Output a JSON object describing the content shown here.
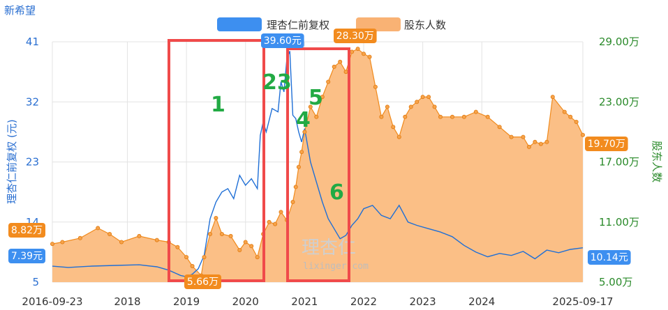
{
  "title": "新希望",
  "legend": [
    {
      "label": "理杏仁前复权",
      "color": "#3d8ff0"
    },
    {
      "label": "股东人数",
      "color": "#f9b274"
    }
  ],
  "axis": {
    "left_label": "理杏仁前复权 (元)",
    "right_label": "股东人数",
    "left_ticks": [
      "41",
      "32",
      "23",
      "14",
      "5"
    ],
    "right_ticks": [
      "29.00万",
      "23.00万",
      "17.00万",
      "11.00万",
      "5.00万"
    ],
    "x_ticks": [
      "2016-09-23",
      "2018",
      "2019",
      "2020",
      "2021",
      "2022",
      "2023",
      "2024",
      "2025-09-17"
    ]
  },
  "tags": {
    "price_start": "7.39元",
    "price_end": "10.14元",
    "price_max": "39.60元",
    "holders_start": "8.82万",
    "holders_end": "19.70万",
    "holders_max": "28.30万",
    "holders_min": "5.66万"
  },
  "annotations": [
    "1",
    "23",
    "4",
    "5",
    "6"
  ],
  "watermark": {
    "cn": "理杏仁",
    "url": "lixinger.com"
  },
  "colors": {
    "price_line": "#1f6fd6",
    "holders_fill": "#fbbf86",
    "holders_line": "#f08a1c",
    "box": "#f04a4a",
    "anno": "#22aa44"
  },
  "chart_data": {
    "type": "line",
    "title": "新希望",
    "x_start": "2016-09-23",
    "x_end": "2025-09-17",
    "left_axis": {
      "label": "理杏仁前复权 (元)",
      "ylim": [
        5,
        41
      ]
    },
    "right_axis": {
      "label": "股东人数",
      "unit": "万",
      "ylim": [
        5,
        29
      ]
    },
    "series": [
      {
        "name": "理杏仁前复权",
        "axis": "left",
        "x": [
          2016.73,
          2017.0,
          2017.4,
          2017.8,
          2018.2,
          2018.5,
          2018.7,
          2018.9,
          2019.0,
          2019.1,
          2019.2,
          2019.3,
          2019.4,
          2019.5,
          2019.6,
          2019.7,
          2019.8,
          2019.9,
          2020.0,
          2020.1,
          2020.2,
          2020.25,
          2020.3,
          2020.35,
          2020.45,
          2020.55,
          2020.6,
          2020.65,
          2020.7,
          2020.75,
          2020.8,
          2020.85,
          2020.9,
          2020.95,
          2021.0,
          2021.1,
          2021.2,
          2021.3,
          2021.4,
          2021.5,
          2021.6,
          2021.7,
          2021.8,
          2021.9,
          2022.0,
          2022.15,
          2022.3,
          2022.45,
          2022.6,
          2022.75,
          2022.9,
          2023.1,
          2023.3,
          2023.5,
          2023.7,
          2023.9,
          2024.1,
          2024.3,
          2024.5,
          2024.7,
          2024.9,
          2025.1,
          2025.3,
          2025.5,
          2025.71
        ],
        "values": [
          7.39,
          7.2,
          7.4,
          7.5,
          7.6,
          7.3,
          6.8,
          6.0,
          5.8,
          6.2,
          7.0,
          9.0,
          14.5,
          17.0,
          18.5,
          19.0,
          17.5,
          21.0,
          19.5,
          20.5,
          19.0,
          27.0,
          29.0,
          27.5,
          31.0,
          30.5,
          35.0,
          33.5,
          38.5,
          39.6,
          30.0,
          29.5,
          27.5,
          26.0,
          28.0,
          23.0,
          20.0,
          17.0,
          14.5,
          13.0,
          11.5,
          12.0,
          13.5,
          14.5,
          16.0,
          16.5,
          15.0,
          14.5,
          16.5,
          14.0,
          13.5,
          13.0,
          12.5,
          11.8,
          10.5,
          9.5,
          8.8,
          9.3,
          9.0,
          9.6,
          8.5,
          9.8,
          9.4,
          9.9,
          10.14
        ]
      },
      {
        "name": "股东人数",
        "axis": "right",
        "unit": "万",
        "x": [
          2016.73,
          2016.9,
          2017.2,
          2017.5,
          2017.7,
          2017.9,
          2018.2,
          2018.5,
          2018.7,
          2018.85,
          2019.0,
          2019.1,
          2019.25,
          2019.3,
          2019.4,
          2019.5,
          2019.6,
          2019.75,
          2019.9,
          2020.0,
          2020.1,
          2020.2,
          2020.3,
          2020.4,
          2020.5,
          2020.6,
          2020.7,
          2020.8,
          2020.85,
          2020.9,
          2020.95,
          2021.0,
          2021.1,
          2021.2,
          2021.3,
          2021.4,
          2021.5,
          2021.6,
          2021.7,
          2021.8,
          2021.9,
          2022.0,
          2022.1,
          2022.2,
          2022.3,
          2022.4,
          2022.5,
          2022.6,
          2022.7,
          2022.8,
          2022.9,
          2023.0,
          2023.1,
          2023.2,
          2023.3,
          2023.5,
          2023.7,
          2023.9,
          2024.1,
          2024.3,
          2024.5,
          2024.7,
          2024.8,
          2024.9,
          2025.0,
          2025.1,
          2025.2,
          2025.4,
          2025.5,
          2025.6,
          2025.71
        ],
        "values": [
          8.82,
          9.0,
          9.4,
          10.4,
          9.8,
          9.0,
          9.6,
          9.2,
          9.0,
          8.5,
          7.5,
          6.6,
          5.66,
          7.5,
          9.8,
          11.4,
          9.8,
          9.6,
          8.2,
          9.0,
          8.6,
          7.5,
          9.8,
          11.0,
          10.8,
          12.0,
          11.2,
          13.0,
          14.5,
          16.5,
          18.0,
          20.0,
          22.5,
          21.5,
          23.5,
          25.0,
          26.5,
          27.0,
          26.0,
          28.0,
          28.3,
          27.8,
          27.5,
          24.5,
          21.5,
          22.5,
          20.5,
          19.5,
          21.5,
          22.5,
          23.0,
          23.5,
          23.5,
          22.5,
          21.5,
          21.5,
          21.5,
          22.0,
          21.5,
          20.5,
          19.5,
          19.5,
          18.5,
          19.0,
          18.8,
          19.0,
          23.5,
          22.0,
          21.5,
          21.0,
          19.7
        ]
      }
    ]
  }
}
